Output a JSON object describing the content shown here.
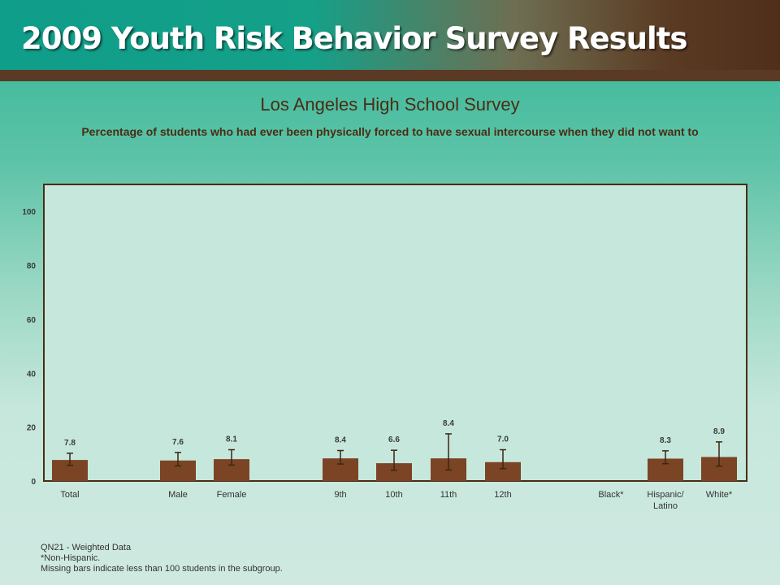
{
  "header": {
    "title": "2009 Youth Risk Behavior Survey Results"
  },
  "colors": {
    "bar": "#7b4424",
    "error_bar": "#3c2614",
    "plot_border": "#4a2d14",
    "plot_bg": "#c6e7dc",
    "text": "#4a2d14"
  },
  "chart_data": {
    "type": "bar",
    "title": "Los Angeles High School Survey",
    "subtitle": "Percentage of students who had ever been physically forced to have sexual intercourse when they did not want to",
    "ylim": [
      0,
      110
    ],
    "yticks": [
      0,
      20,
      40,
      60,
      80,
      100
    ],
    "grid": false,
    "categories": [
      "Total",
      "Male",
      "Female",
      "9th",
      "10th",
      "11th",
      "12th",
      "Black*",
      "Hispanic/\nLatino",
      "White*"
    ],
    "values": [
      7.8,
      7.6,
      8.1,
      8.4,
      6.6,
      8.4,
      7.0,
      null,
      8.3,
      8.9
    ],
    "value_labels": [
      "7.8",
      "7.6",
      "8.1",
      "8.4",
      "6.6",
      "8.4",
      "7.0",
      "",
      "8.3",
      "8.9"
    ],
    "ci_low": [
      5.8,
      5.6,
      5.9,
      6.3,
      4.0,
      4.1,
      4.6,
      null,
      6.4,
      5.5
    ],
    "ci_high": [
      10.3,
      10.6,
      11.6,
      11.3,
      11.4,
      17.5,
      11.6,
      null,
      11.2,
      14.5
    ]
  },
  "footnotes": [
    "QN21 - Weighted Data",
    "*Non-Hispanic.",
    "Missing bars indicate less than 100 students in the subgroup."
  ]
}
